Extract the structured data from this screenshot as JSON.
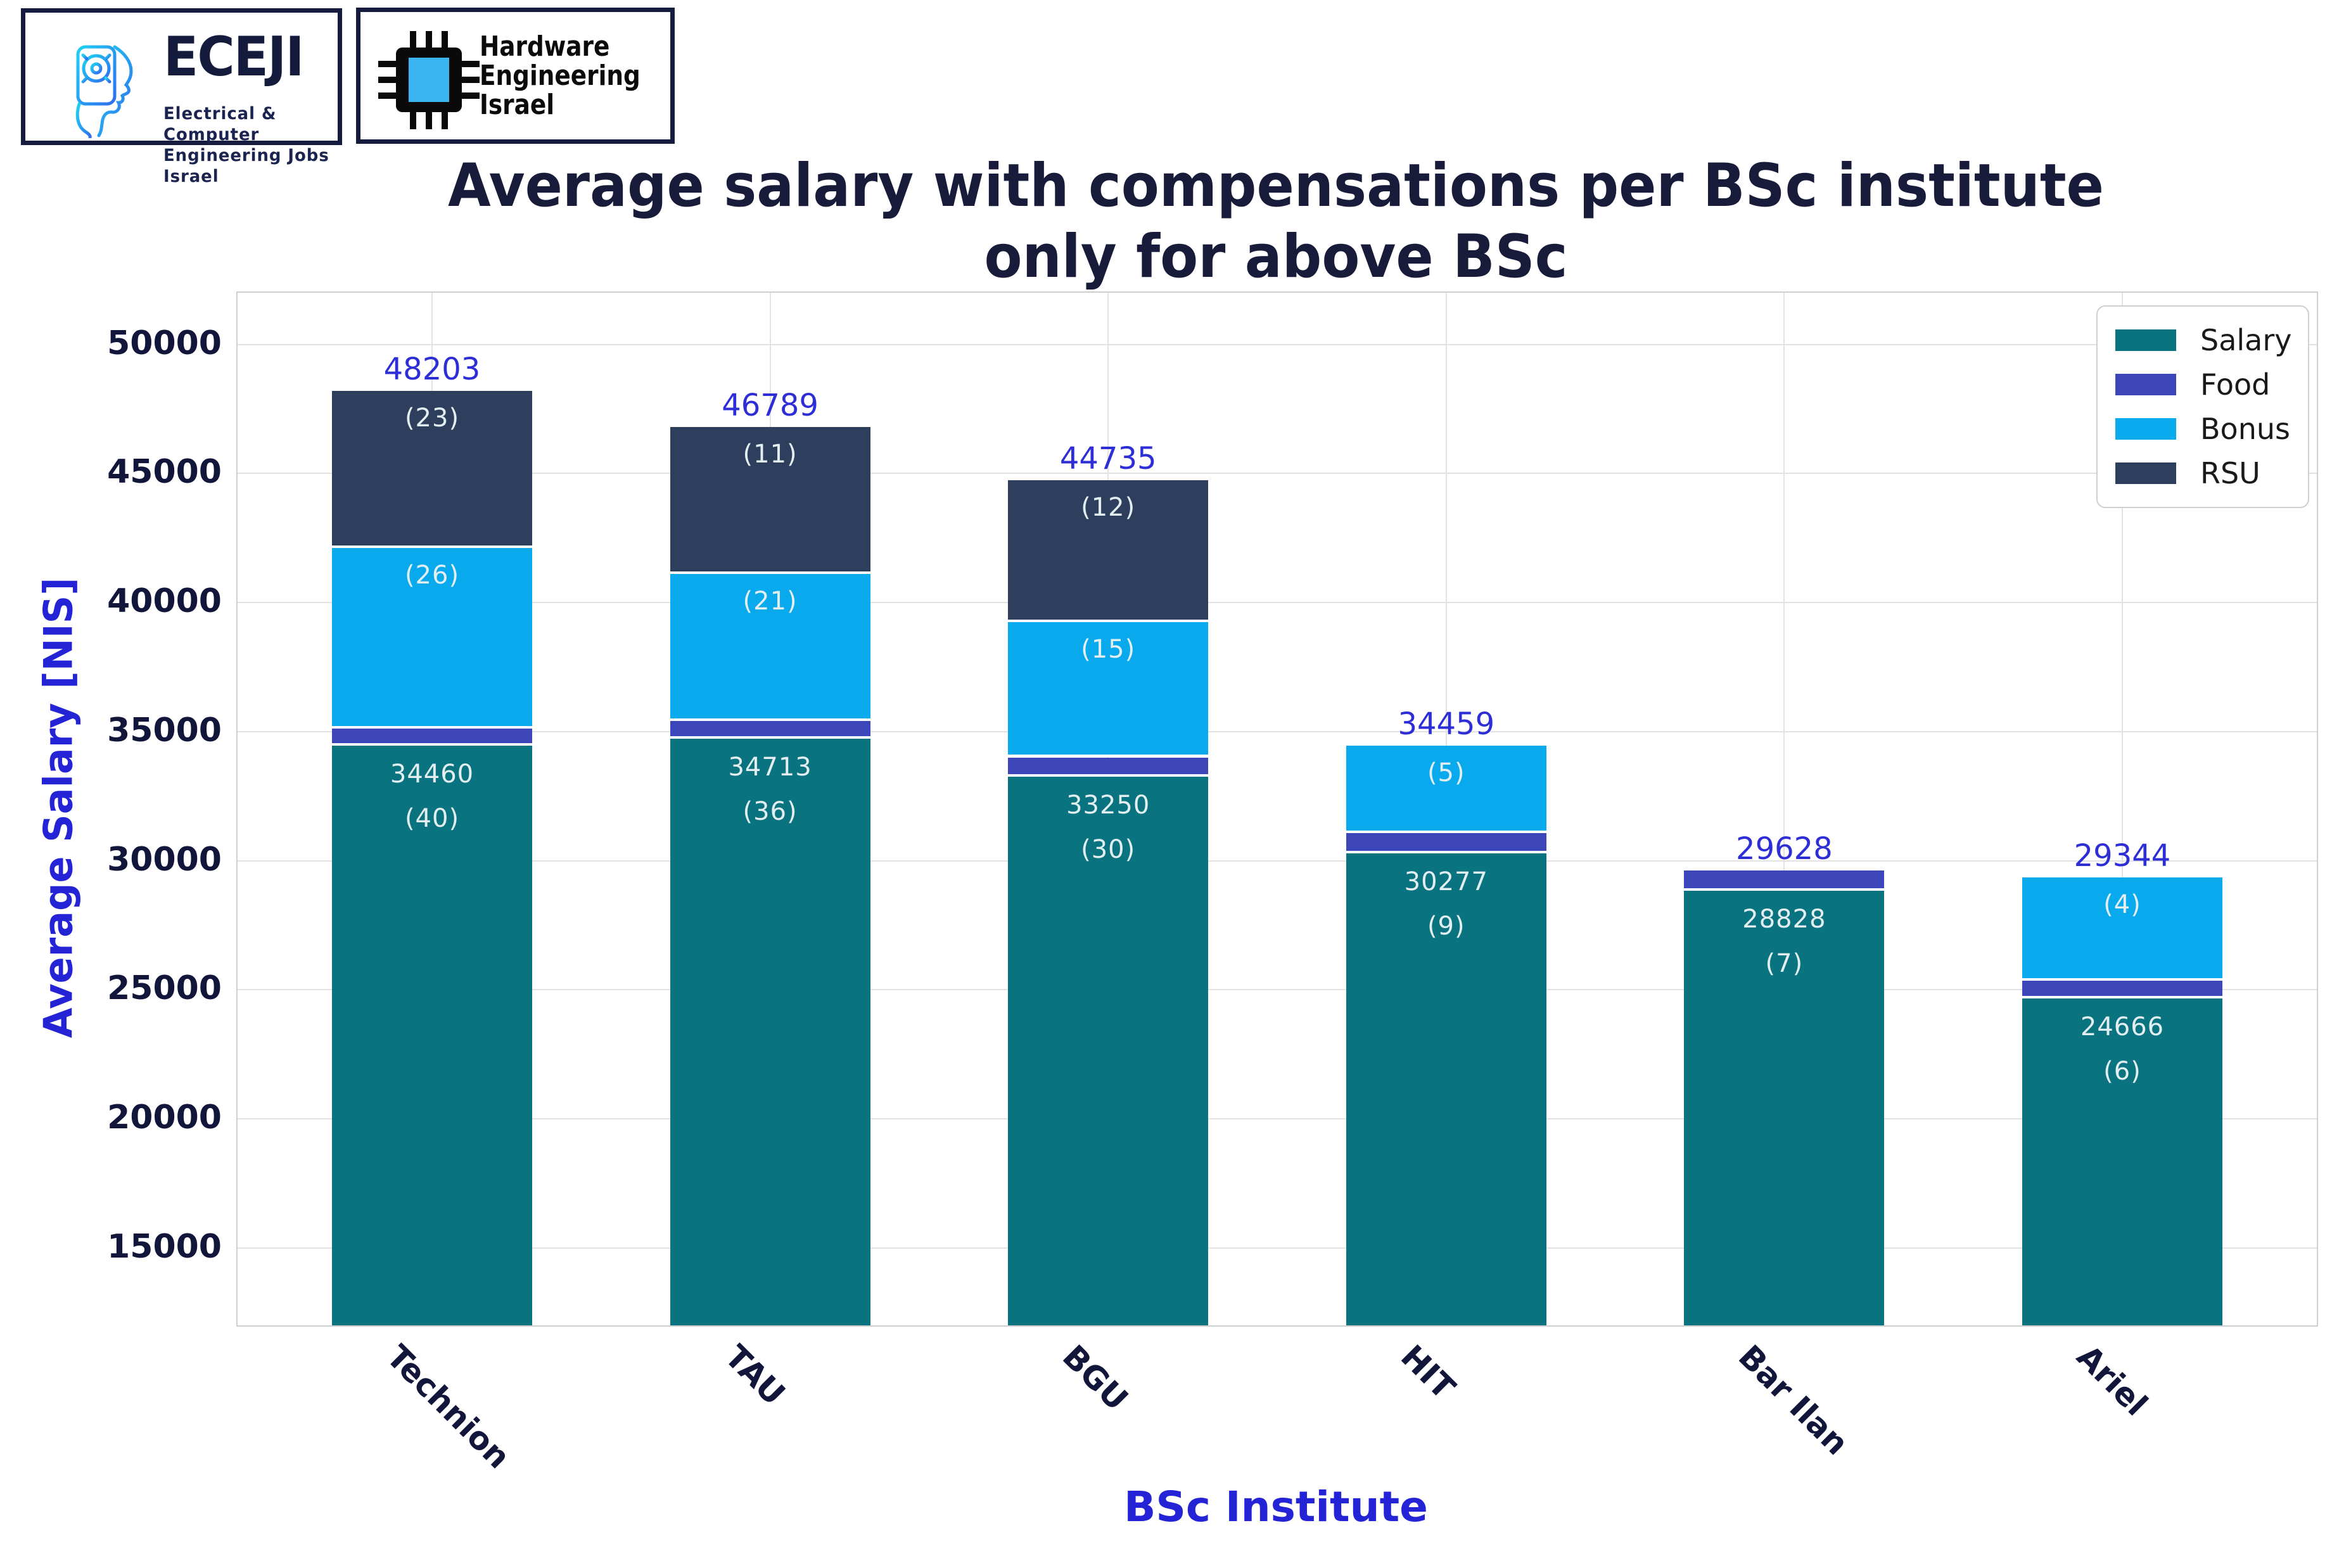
{
  "header": {
    "eceji": {
      "title": "ECEJI",
      "subtitle_line1": "Electrical  &  Computer",
      "subtitle_line2": "Engineering Jobs Israel"
    },
    "hei": {
      "line1": "Hardware",
      "line2": "Engineering",
      "line3": "Israel"
    }
  },
  "title_line1": "Average salary with compensations per BSc institute",
  "title_line2": "only for above BSc",
  "colors": {
    "title_text": "#181c3a",
    "axis_title_blue": "#2424d6",
    "tick_navy": "#11163a",
    "total_label_blue": "#2e2ed6",
    "in_bar_label": "#e3eef1",
    "gridline": "#e2e2e2",
    "plot_border": "#cfcfcf"
  },
  "chart_data": {
    "type": "bar",
    "stacked": true,
    "title": "Average salary with compensations per BSc institute only for above BSc",
    "xlabel": "BSc Institute",
    "ylabel": "Average Salary [NIS]",
    "categories": [
      "Technion",
      "TAU",
      "BGU",
      "HIT",
      "Bar Ilan",
      "Ariel"
    ],
    "series": [
      {
        "name": "Salary",
        "color": "#0a7380",
        "values": [
          34460,
          34713,
          33250,
          30277,
          28828,
          24666
        ],
        "counts": [
          40,
          36,
          30,
          9,
          7,
          6
        ],
        "show_value": true
      },
      {
        "name": "Food",
        "color": "#3c46b8",
        "values": [
          650,
          700,
          750,
          800,
          800,
          680
        ],
        "counts": [
          null,
          null,
          null,
          null,
          null,
          null
        ],
        "show_value": false
      },
      {
        "name": "Bonus",
        "color": "#09a9ee",
        "values": [
          7005,
          5700,
          5240,
          3382,
          0,
          3998
        ],
        "counts": [
          26,
          21,
          15,
          5,
          null,
          4
        ],
        "show_value": false
      },
      {
        "name": "RSU",
        "color": "#2e3f5e",
        "values": [
          6088,
          5676,
          5495,
          0,
          0,
          0
        ],
        "counts": [
          23,
          11,
          12,
          null,
          null,
          null
        ],
        "show_value": false
      }
    ],
    "totals": [
      48203,
      46789,
      44735,
      34459,
      29628,
      29344
    ],
    "y_ticks": [
      15000,
      20000,
      25000,
      30000,
      35000,
      40000,
      45000,
      50000
    ],
    "ylim": [
      12000,
      52000
    ],
    "grid": true,
    "legend": [
      "Salary",
      "Food",
      "Bonus",
      "RSU"
    ],
    "legend_position": "upper right"
  }
}
